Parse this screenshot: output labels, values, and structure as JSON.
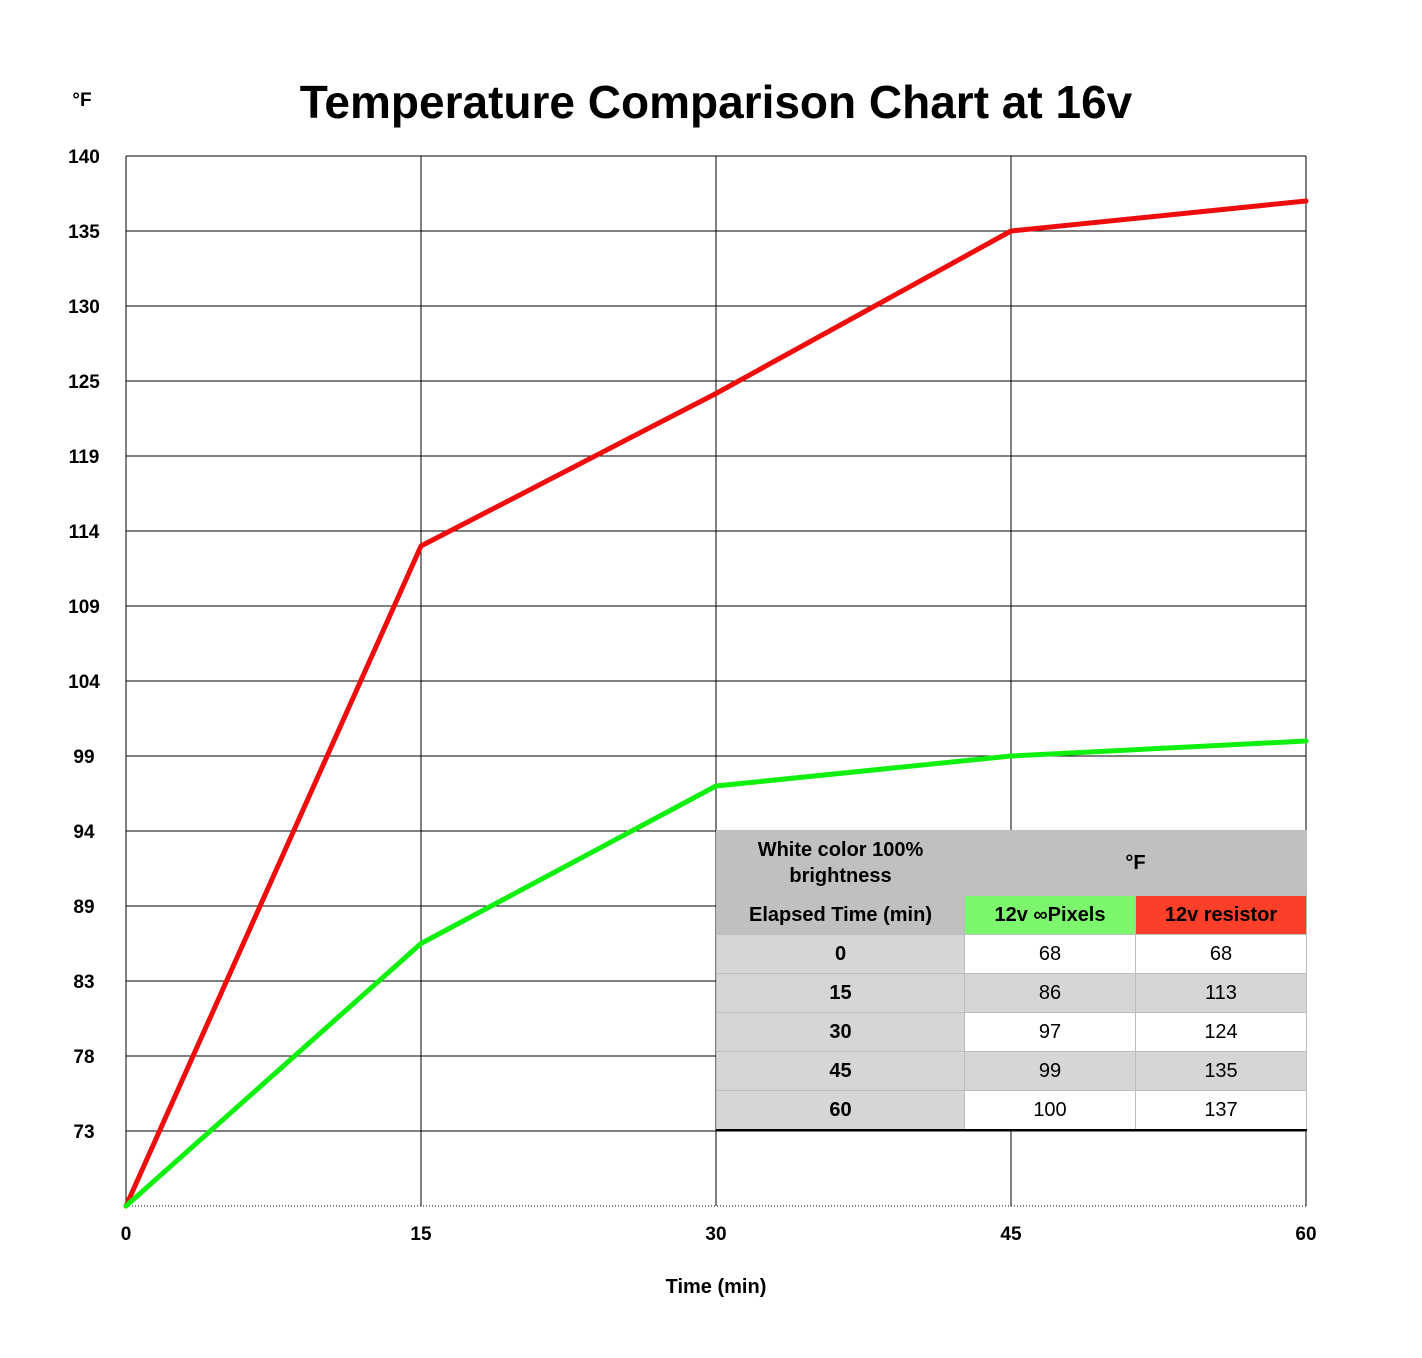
{
  "chart_data": {
    "type": "line",
    "title": "Temperature Comparison Chart at 16v",
    "y_unit_label": "°F",
    "xlabel": "Time (min)",
    "ylabel": "",
    "x": [
      0,
      15,
      30,
      45,
      60
    ],
    "x_ticks": [
      "0",
      "15",
      "30",
      "45",
      "60"
    ],
    "xlim": [
      0,
      60
    ],
    "ylim": [
      68,
      140
    ],
    "y_ticks": [
      73,
      78,
      83,
      89,
      94,
      99,
      104,
      109,
      114,
      119,
      125,
      130,
      135,
      140
    ],
    "grid": true,
    "series": [
      {
        "color": "#ee0c0c",
        "values": [
          68,
          113,
          124,
          135,
          137
        ]
      },
      {
        "color": "#0ff00f",
        "values": [
          68,
          86,
          97,
          99,
          100
        ]
      }
    ]
  },
  "table": {
    "header_left": "White color 100% brightness",
    "header_right": "°F",
    "col_time": "Elapsed Time (min)",
    "col_pixels": "12v ∞Pixels",
    "col_resistor": "12v resistor",
    "rows": [
      {
        "time": "0",
        "pixels": "68",
        "resistor": "68"
      },
      {
        "time": "15",
        "pixels": "86",
        "resistor": "113"
      },
      {
        "time": "30",
        "pixels": "97",
        "resistor": "124"
      },
      {
        "time": "45",
        "pixels": "99",
        "resistor": "135"
      },
      {
        "time": "60",
        "pixels": "100",
        "resistor": "137"
      }
    ]
  },
  "colors": {
    "pixels_header": "#7cf76d",
    "resistor_header": "#fb3f29",
    "header_gray": "#bfc0bf",
    "row_gray": "#d6d6d6"
  }
}
